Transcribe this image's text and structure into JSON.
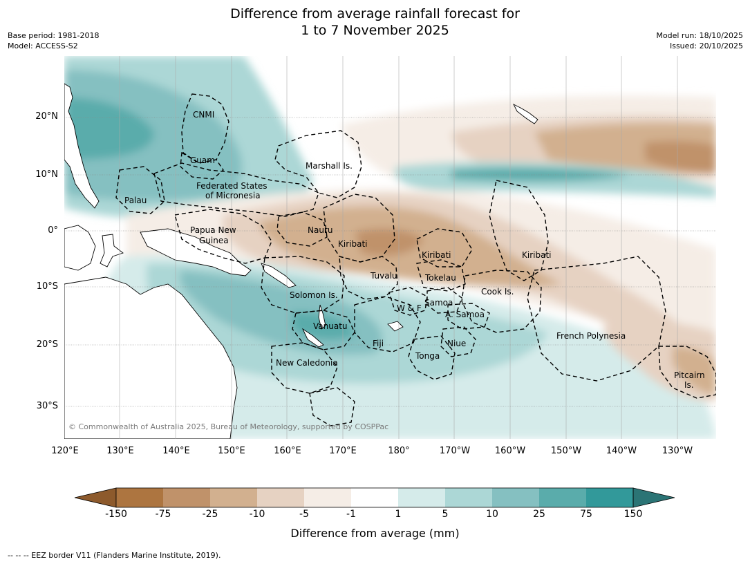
{
  "title": {
    "line1": "Difference from average rainfall forecast for",
    "line2": "1 to 7 November 2025"
  },
  "meta": {
    "base_period": "Base period: 1981-2018",
    "model": "Model: ACCESS-S2",
    "model_run": "Model run: 18/10/2025",
    "issued": "Issued: 20/10/2025"
  },
  "axes": {
    "lat_ticks": [
      "20°N",
      "10°N",
      "0°",
      "10°S",
      "20°S",
      "30°S"
    ],
    "lon_ticks": [
      "120°E",
      "130°E",
      "140°E",
      "150°E",
      "160°E",
      "170°E",
      "180°",
      "170°W",
      "160°W",
      "150°W",
      "140°W",
      "130°W"
    ]
  },
  "regions": {
    "cnmi": "CNMI",
    "guam": "Guam",
    "marshall": "Marshall Is.",
    "fsm_line1": "Federated States",
    "fsm_line2": "of Micronesia",
    "palau": "Palau",
    "png_line1": "Papua New",
    "png_line2": "Guinea",
    "nauru": "Nauru",
    "kiribati_west": "Kiribati",
    "kiribati_central": "Kiribati",
    "kiribati_east": "Kiribati",
    "tuvalu": "Tuvalu",
    "tokelau": "Tokelau",
    "cook": "Cook Is.",
    "solomon": "Solomon Is.",
    "samoa": "Samoa",
    "wf": "W & F",
    "amsamoa": "A. Samoa",
    "vanuatu": "Vanuatu",
    "fiji": "Fiji",
    "niue": "Niue",
    "tonga": "Tonga",
    "frpoly": "French Polynesia",
    "newcal": "New Caledonia",
    "pitcairn_line1": "Pitcairn",
    "pitcairn_line2": "Is."
  },
  "copyright": "© Commonwealth of Australia 2025, Bureau of Meteorology, supported by COSPPac",
  "colorbar": {
    "label": "Difference from average (mm)",
    "ticks": [
      "-150",
      "-75",
      "-25",
      "-10",
      "-5",
      "-1",
      "1",
      "5",
      "10",
      "25",
      "75",
      "150"
    ],
    "colors": [
      "#8d5a2c",
      "#ad7540",
      "#c0926a",
      "#d2b08f",
      "#e6d2c2",
      "#f5ede6",
      "#ffffff",
      "#d5ebea",
      "#acd7d6",
      "#85c0c1",
      "#5aacab",
      "#32999a",
      "#2b7475"
    ]
  },
  "footnote": "--  --  -- EEZ border V11 (Flanders Marine Institute, 2019)."
}
